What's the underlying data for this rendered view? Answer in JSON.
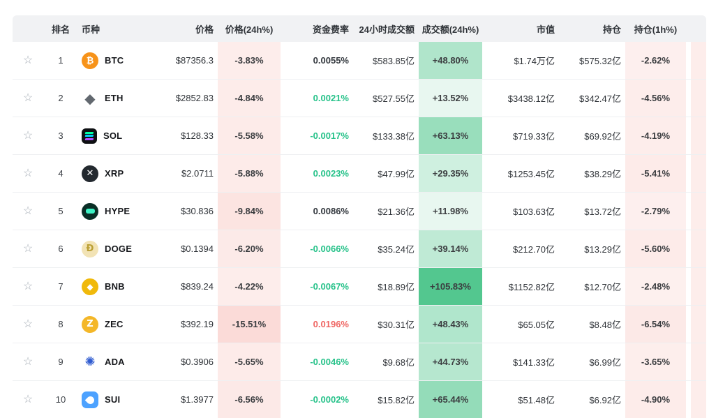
{
  "table": {
    "columns": [
      {
        "key": "fav",
        "label": ""
      },
      {
        "key": "rank",
        "label": "排名"
      },
      {
        "key": "coin",
        "label": "币种"
      },
      {
        "key": "price",
        "label": "价格"
      },
      {
        "key": "price_chg_24h",
        "label": "价格(24h%)"
      },
      {
        "key": "funding",
        "label": "资金费率"
      },
      {
        "key": "vol_24h",
        "label": "24小时成交额"
      },
      {
        "key": "vol_chg_24h",
        "label": "成交额(24h%)"
      },
      {
        "key": "mcap",
        "label": "市值"
      },
      {
        "key": "oi",
        "label": "持仓"
      },
      {
        "key": "oi_chg_1h",
        "label": "持仓(1h%)"
      }
    ],
    "rows": [
      {
        "rank": "1",
        "symbol": "BTC",
        "icon": "btc-icon",
        "price": "$87356.3",
        "price_chg_24h": "-3.83%",
        "price_chg_value": -3.83,
        "funding": "0.0055%",
        "funding_tone": "neutral",
        "vol_24h": "$583.85亿",
        "vol_chg_24h": "+48.80%",
        "vol_chg_value": 48.8,
        "mcap": "$1.74万亿",
        "oi": "$575.32亿",
        "oi_chg_1h": "-2.62%",
        "oi_chg_value": -2.62
      },
      {
        "rank": "2",
        "symbol": "ETH",
        "icon": "eth-icon",
        "price": "$2852.83",
        "price_chg_24h": "-4.84%",
        "price_chg_value": -4.84,
        "funding": "0.0021%",
        "funding_tone": "positive",
        "vol_24h": "$527.55亿",
        "vol_chg_24h": "+13.52%",
        "vol_chg_value": 13.52,
        "mcap": "$3438.12亿",
        "oi": "$342.47亿",
        "oi_chg_1h": "-4.56%",
        "oi_chg_value": -4.56
      },
      {
        "rank": "3",
        "symbol": "SOL",
        "icon": "sol-icon",
        "price": "$128.33",
        "price_chg_24h": "-5.58%",
        "price_chg_value": -5.58,
        "funding": "-0.0017%",
        "funding_tone": "positive",
        "vol_24h": "$133.38亿",
        "vol_chg_24h": "+63.13%",
        "vol_chg_value": 63.13,
        "mcap": "$719.33亿",
        "oi": "$69.92亿",
        "oi_chg_1h": "-4.19%",
        "oi_chg_value": -4.19
      },
      {
        "rank": "4",
        "symbol": "XRP",
        "icon": "xrp-icon",
        "price": "$2.0711",
        "price_chg_24h": "-5.88%",
        "price_chg_value": -5.88,
        "funding": "0.0023%",
        "funding_tone": "positive",
        "vol_24h": "$47.99亿",
        "vol_chg_24h": "+29.35%",
        "vol_chg_value": 29.35,
        "mcap": "$1253.45亿",
        "oi": "$38.29亿",
        "oi_chg_1h": "-5.41%",
        "oi_chg_value": -5.41
      },
      {
        "rank": "5",
        "symbol": "HYPE",
        "icon": "hype-icon",
        "price": "$30.836",
        "price_chg_24h": "-9.84%",
        "price_chg_value": -9.84,
        "funding": "0.0086%",
        "funding_tone": "neutral",
        "vol_24h": "$21.36亿",
        "vol_chg_24h": "+11.98%",
        "vol_chg_value": 11.98,
        "mcap": "$103.63亿",
        "oi": "$13.72亿",
        "oi_chg_1h": "-2.79%",
        "oi_chg_value": -2.79
      },
      {
        "rank": "6",
        "symbol": "DOGE",
        "icon": "doge-icon",
        "price": "$0.1394",
        "price_chg_24h": "-6.20%",
        "price_chg_value": -6.2,
        "funding": "-0.0066%",
        "funding_tone": "positive",
        "vol_24h": "$35.24亿",
        "vol_chg_24h": "+39.14%",
        "vol_chg_value": 39.14,
        "mcap": "$212.70亿",
        "oi": "$13.29亿",
        "oi_chg_1h": "-5.60%",
        "oi_chg_value": -5.6
      },
      {
        "rank": "7",
        "symbol": "BNB",
        "icon": "bnb-icon",
        "price": "$839.24",
        "price_chg_24h": "-4.22%",
        "price_chg_value": -4.22,
        "funding": "-0.0067%",
        "funding_tone": "positive",
        "vol_24h": "$18.89亿",
        "vol_chg_24h": "+105.83%",
        "vol_chg_value": 105.83,
        "mcap": "$1152.82亿",
        "oi": "$12.70亿",
        "oi_chg_1h": "-2.48%",
        "oi_chg_value": -2.48
      },
      {
        "rank": "8",
        "symbol": "ZEC",
        "icon": "zec-icon",
        "price": "$392.19",
        "price_chg_24h": "-15.51%",
        "price_chg_value": -15.51,
        "funding": "0.0196%",
        "funding_tone": "negative",
        "vol_24h": "$30.31亿",
        "vol_chg_24h": "+48.43%",
        "vol_chg_value": 48.43,
        "mcap": "$65.05亿",
        "oi": "$8.48亿",
        "oi_chg_1h": "-6.54%",
        "oi_chg_value": -6.54
      },
      {
        "rank": "9",
        "symbol": "ADA",
        "icon": "ada-icon",
        "price": "$0.3906",
        "price_chg_24h": "-5.65%",
        "price_chg_value": -5.65,
        "funding": "-0.0046%",
        "funding_tone": "positive",
        "vol_24h": "$9.68亿",
        "vol_chg_24h": "+44.73%",
        "vol_chg_value": 44.73,
        "mcap": "$141.33亿",
        "oi": "$6.99亿",
        "oi_chg_1h": "-3.65%",
        "oi_chg_value": -3.65
      },
      {
        "rank": "10",
        "symbol": "SUI",
        "icon": "sui-icon",
        "price": "$1.3977",
        "price_chg_24h": "-6.56%",
        "price_chg_value": -6.56,
        "funding": "-0.0002%",
        "funding_tone": "positive",
        "vol_24h": "$15.82亿",
        "vol_chg_24h": "+65.44%",
        "vol_chg_value": 65.44,
        "mcap": "$51.48亿",
        "oi": "$6.92亿",
        "oi_chg_1h": "-4.90%",
        "oi_chg_value": -4.9
      }
    ]
  },
  "colors": {
    "header_bg": "#f1f2f4",
    "row_bg": "#ffffff",
    "separator": "#eef0f2",
    "text_primary": "#2f3338",
    "positive_cell_base": "76,197,138",
    "negative_cell_base": "235,87,70",
    "funding_positive_text": "#27c28a",
    "funding_negative_text": "#ef6663",
    "funding_neutral_text": "#33383e",
    "star": "#a9b0b8"
  }
}
